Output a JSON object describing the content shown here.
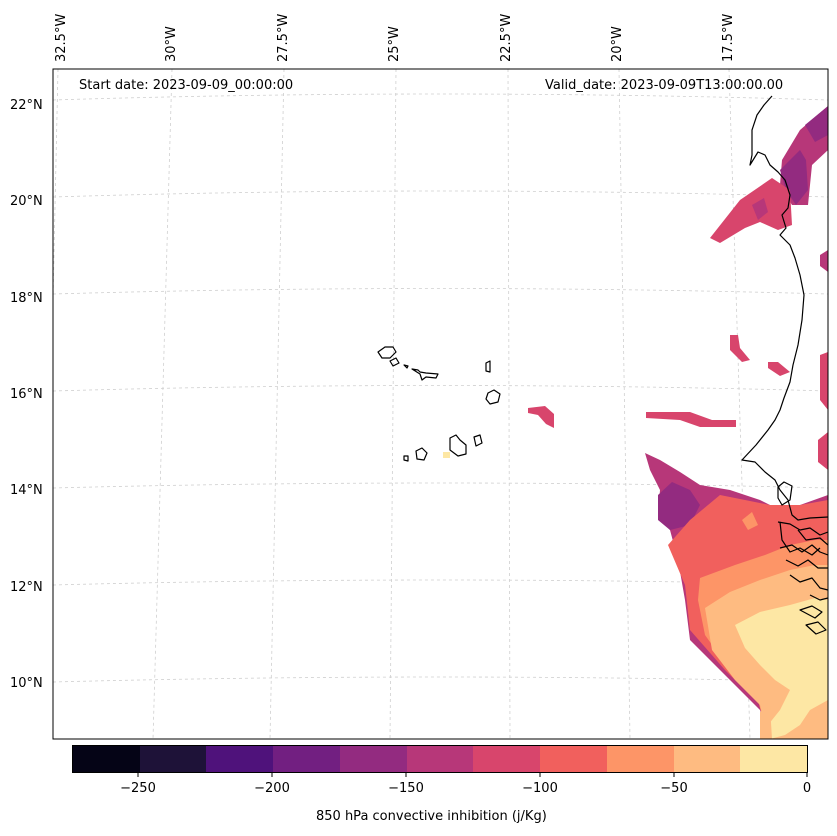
{
  "header": {
    "start_date": "Start date: 2023-09-09_00:00:00",
    "valid_date": "Valid_date: 2023-09-09T13:00:00.00"
  },
  "axes": {
    "longitude_labels": [
      "32.5°W",
      "30°W",
      "27.5°W",
      "25°W",
      "22.5°W",
      "20°W",
      "17.5°W"
    ],
    "latitude_labels": [
      "22°N",
      "20°N",
      "18°N",
      "16°N",
      "14°N",
      "12°N",
      "10°N"
    ]
  },
  "colorbar": {
    "label": "850 hPa convective inhibition (j/Kg)",
    "ticks": [
      "−250",
      "−200",
      "−150",
      "−100",
      "−50",
      "0"
    ],
    "range": [
      -275,
      0
    ],
    "colors": [
      "#050416",
      "#1e1238",
      "#4f127b",
      "#721f81",
      "#932b80",
      "#b73779",
      "#d8456c",
      "#f1605d",
      "#fd9567",
      "#febb81",
      "#fde7a4"
    ]
  }
}
